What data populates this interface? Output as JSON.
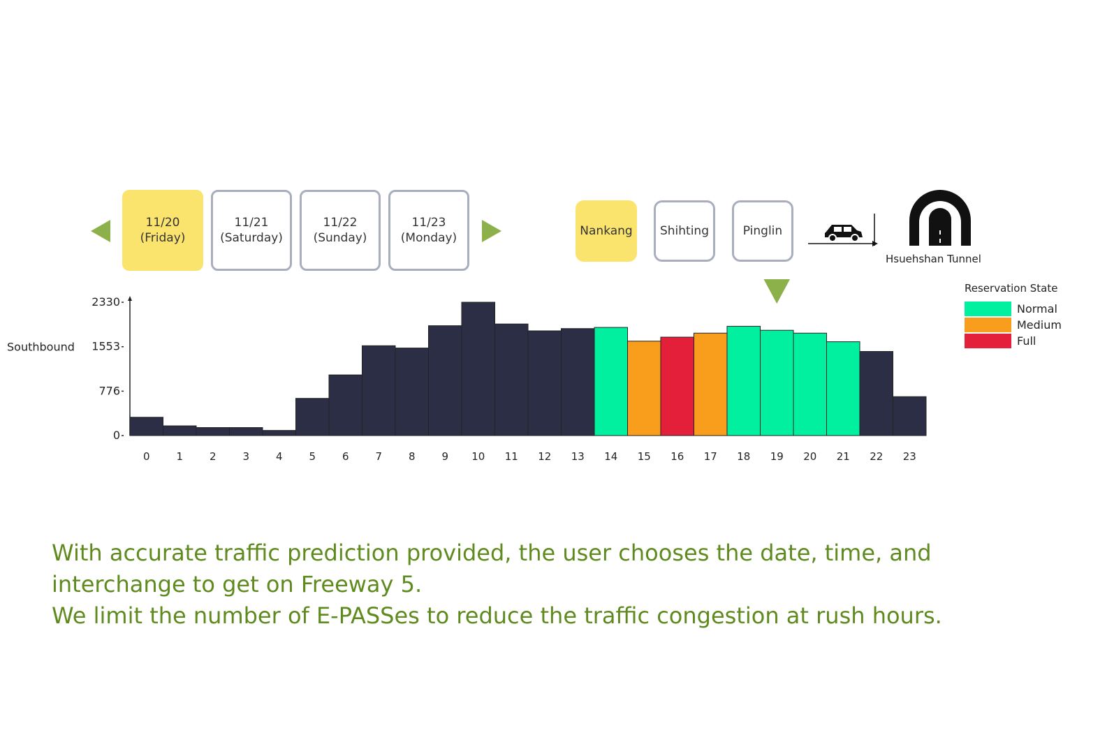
{
  "colors": {
    "selected": "#fbe46d",
    "border": "#a9aebd",
    "arrow": "#8cb04a",
    "bar_default": "#2b2e44",
    "caption": "#5f8a1e"
  },
  "date_nav": {
    "prev_icon": "triangle-left-icon",
    "next_icon": "triangle-right-icon",
    "dates": [
      {
        "date": "11/20",
        "day": "(Friday)",
        "selected": true
      },
      {
        "date": "11/21",
        "day": "(Saturday)",
        "selected": false
      },
      {
        "date": "11/22",
        "day": "(Sunday)",
        "selected": false
      },
      {
        "date": "11/23",
        "day": "(Monday)",
        "selected": false
      }
    ]
  },
  "interchanges": [
    {
      "label": "Nankang",
      "selected": true
    },
    {
      "label": "Shihting",
      "selected": false
    },
    {
      "label": "Pinglin",
      "selected": false
    }
  ],
  "route": {
    "car_icon": "car-icon",
    "tunnel_icon": "tunnel-icon",
    "tunnel_label": "Hsuehshan Tunnel"
  },
  "legend": {
    "title": "Reservation State",
    "items": [
      {
        "label": "Normal",
        "color": "#00f0a0"
      },
      {
        "label": "Medium",
        "color": "#f99d1c"
      },
      {
        "label": "Full",
        "color": "#e41f3a"
      }
    ]
  },
  "chart_data": {
    "type": "bar",
    "ylabel": "Southbound",
    "ylim": [
      0,
      2330
    ],
    "yticks": [
      0,
      776,
      1553,
      2330
    ],
    "categories": [
      "0",
      "1",
      "2",
      "3",
      "4",
      "5",
      "6",
      "7",
      "8",
      "9",
      "10",
      "11",
      "12",
      "13",
      "14",
      "15",
      "16",
      "17",
      "18",
      "19",
      "20",
      "21",
      "22",
      "23"
    ],
    "values": [
      320,
      170,
      140,
      140,
      90,
      650,
      1060,
      1570,
      1530,
      1920,
      2330,
      1950,
      1830,
      1870,
      1890,
      1650,
      1720,
      1790,
      1910,
      1840,
      1790,
      1640,
      1470,
      680
    ],
    "states": [
      "",
      "",
      "",
      "",
      "",
      "",
      "",
      "",
      "",
      "",
      "",
      "",
      "",
      "",
      "Normal",
      "Medium",
      "Full",
      "Medium",
      "Normal",
      "Normal",
      "Normal",
      "Normal",
      "",
      ""
    ],
    "selected_hour": "19"
  },
  "caption": {
    "line1": "With accurate traffic prediction provided, the user chooses the date, time, and",
    "line2": "interchange to get on Freeway 5.",
    "line3": "We limit the number of E-PASSes to reduce the traffic congestion at rush hours."
  }
}
